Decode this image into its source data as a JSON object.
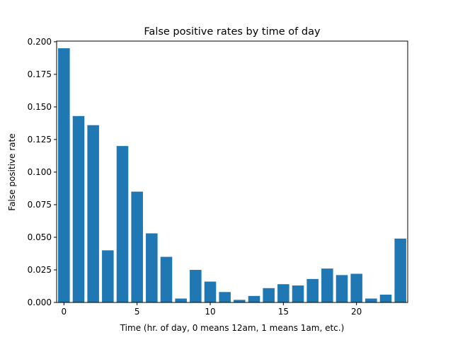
{
  "chart_data": {
    "type": "bar",
    "title": "False positive rates by time of day",
    "xlabel": "Time (hr. of day, 0 means 12am, 1 means 1am, etc.)",
    "ylabel": "False positive rate",
    "x": [
      0,
      1,
      2,
      3,
      4,
      5,
      6,
      7,
      8,
      9,
      10,
      11,
      12,
      13,
      14,
      15,
      16,
      17,
      18,
      19,
      20,
      21,
      22,
      23
    ],
    "values": [
      0.195,
      0.143,
      0.136,
      0.04,
      0.12,
      0.085,
      0.053,
      0.035,
      0.003,
      0.025,
      0.016,
      0.008,
      0.002,
      0.005,
      0.011,
      0.014,
      0.013,
      0.018,
      0.026,
      0.021,
      0.022,
      0.003,
      0.006,
      0.049
    ],
    "xlim": [
      -0.5,
      23.5
    ],
    "ylim": [
      0,
      0.2005
    ],
    "xticks": [
      0,
      5,
      10,
      15,
      20
    ],
    "yticks": [
      0.0,
      0.025,
      0.05,
      0.075,
      0.1,
      0.125,
      0.15,
      0.175,
      0.2
    ],
    "ytick_labels": [
      "0.000",
      "0.025",
      "0.050",
      "0.075",
      "0.100",
      "0.125",
      "0.150",
      "0.175",
      "0.200"
    ],
    "bar_color": "#1f77b4",
    "grid": false,
    "legend": "none"
  }
}
